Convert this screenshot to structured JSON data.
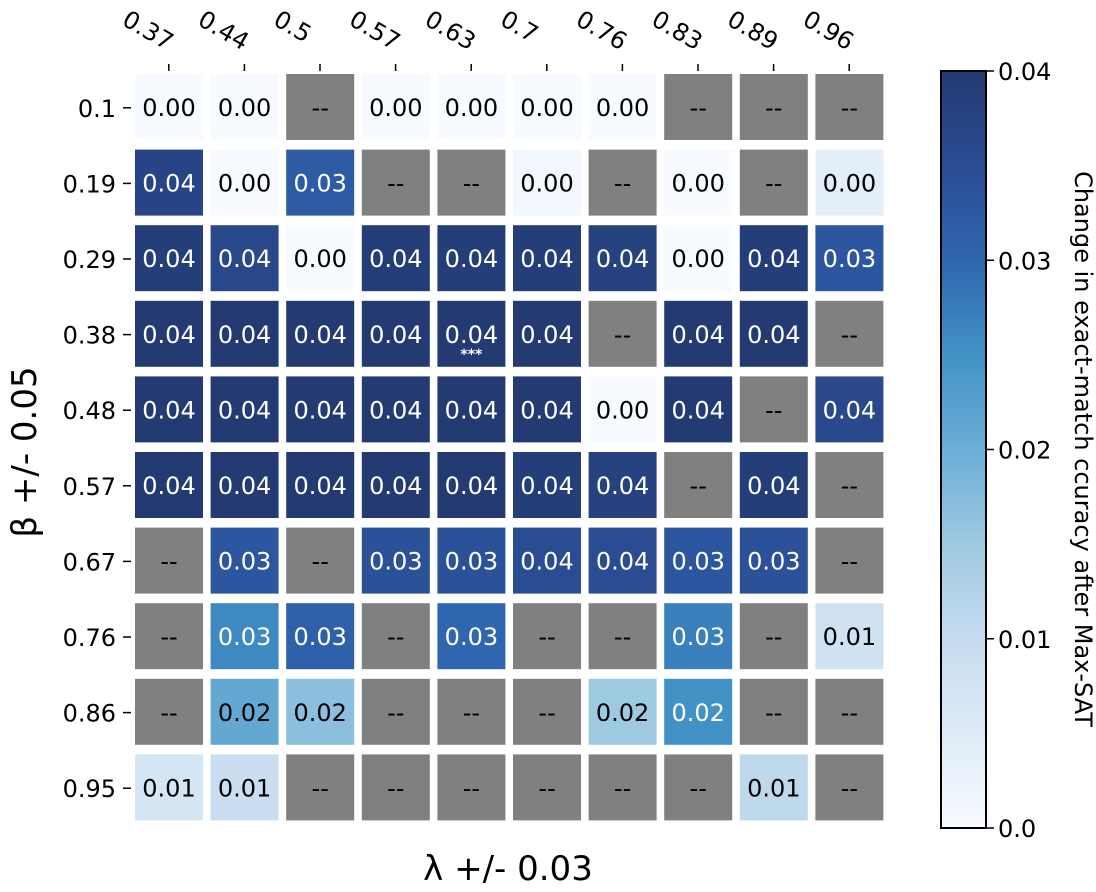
{
  "chart_data": {
    "type": "heatmap",
    "title": "",
    "xlabel": "λ +/- 0.03",
    "ylabel": "β +/- 0.05",
    "x_tick_labels": [
      "0.37",
      "0.44",
      "0.5",
      "0.57",
      "0.63",
      "0.7",
      "0.76",
      "0.83",
      "0.89",
      "0.96"
    ],
    "y_tick_labels": [
      "0.1",
      "0.19",
      "0.29",
      "0.38",
      "0.48",
      "0.57",
      "0.67",
      "0.76",
      "0.86",
      "0.95"
    ],
    "x_axis_position": "top",
    "missing_label": "--",
    "missing_color": "#808080",
    "cells": [
      [
        "0.00",
        "0.00",
        "--",
        "0.00",
        "0.00",
        "0.00",
        "0.00",
        "--",
        "--",
        "--"
      ],
      [
        "0.04",
        "0.00",
        "0.03",
        "--",
        "--",
        "0.00",
        "--",
        "0.00",
        "--",
        "0.00"
      ],
      [
        "0.04",
        "0.04",
        "0.00",
        "0.04",
        "0.04",
        "0.04",
        "0.04",
        "0.00",
        "0.04",
        "0.03"
      ],
      [
        "0.04",
        "0.04",
        "0.04",
        "0.04",
        "0.04",
        "0.04",
        "--",
        "0.04",
        "0.04",
        "--"
      ],
      [
        "0.04",
        "0.04",
        "0.04",
        "0.04",
        "0.04",
        "0.04",
        "0.00",
        "0.04",
        "--",
        "0.04"
      ],
      [
        "0.04",
        "0.04",
        "0.04",
        "0.04",
        "0.04",
        "0.04",
        "0.04",
        "--",
        "0.04",
        "--"
      ],
      [
        "--",
        "0.03",
        "--",
        "0.03",
        "0.03",
        "0.04",
        "0.04",
        "0.03",
        "0.03",
        "--"
      ],
      [
        "--",
        "0.03",
        "0.03",
        "--",
        "0.03",
        "--",
        "--",
        "0.03",
        "--",
        "0.01"
      ],
      [
        "--",
        "0.02",
        "0.02",
        "--",
        "--",
        "--",
        "0.02",
        "0.02",
        "--",
        "--"
      ],
      [
        "0.01",
        "0.01",
        "--",
        "--",
        "--",
        "--",
        "--",
        "--",
        "0.01",
        "--"
      ]
    ],
    "cell_values": [
      [
        0.0,
        0.0,
        null,
        0.0,
        0.0,
        0.0,
        0.0,
        null,
        null,
        null
      ],
      [
        0.037,
        0.0,
        0.032,
        null,
        null,
        0.001,
        null,
        0.0,
        null,
        0.004
      ],
      [
        0.039,
        0.036,
        0.0,
        0.039,
        0.039,
        0.039,
        0.038,
        0.0,
        0.039,
        0.033
      ],
      [
        0.04,
        0.04,
        0.04,
        0.04,
        0.04,
        0.04,
        null,
        0.04,
        0.04,
        null
      ],
      [
        0.04,
        0.04,
        0.04,
        0.04,
        0.04,
        0.04,
        0.0,
        0.04,
        null,
        0.036
      ],
      [
        0.04,
        0.04,
        0.04,
        0.04,
        0.04,
        0.039,
        0.038,
        null,
        0.039,
        null
      ],
      [
        null,
        0.033,
        null,
        0.034,
        0.034,
        0.035,
        0.035,
        0.033,
        0.034,
        null
      ],
      [
        null,
        0.026,
        0.031,
        null,
        0.03,
        null,
        null,
        0.027,
        null,
        0.008
      ],
      [
        null,
        0.021,
        0.017,
        null,
        null,
        null,
        0.015,
        0.025,
        null,
        null
      ],
      [
        0.007,
        0.009,
        null,
        null,
        null,
        null,
        null,
        null,
        0.011,
        null
      ]
    ],
    "annotations": [
      {
        "row": 3,
        "col": 4,
        "text": "***"
      }
    ],
    "colorbar": {
      "label": "Change in exact-match ccuracy after Max-SAT",
      "range": [
        0.0,
        0.04
      ],
      "ticks": [
        "0.0",
        "0.01",
        "0.02",
        "0.03",
        "0.04"
      ],
      "colormap": [
        "#f7fbff",
        "#deebf7",
        "#c6dbef",
        "#9ecae1",
        "#6baed6",
        "#4292c6",
        "#2f66b0",
        "#2a4c93",
        "#233b72"
      ]
    },
    "grid": false
  }
}
